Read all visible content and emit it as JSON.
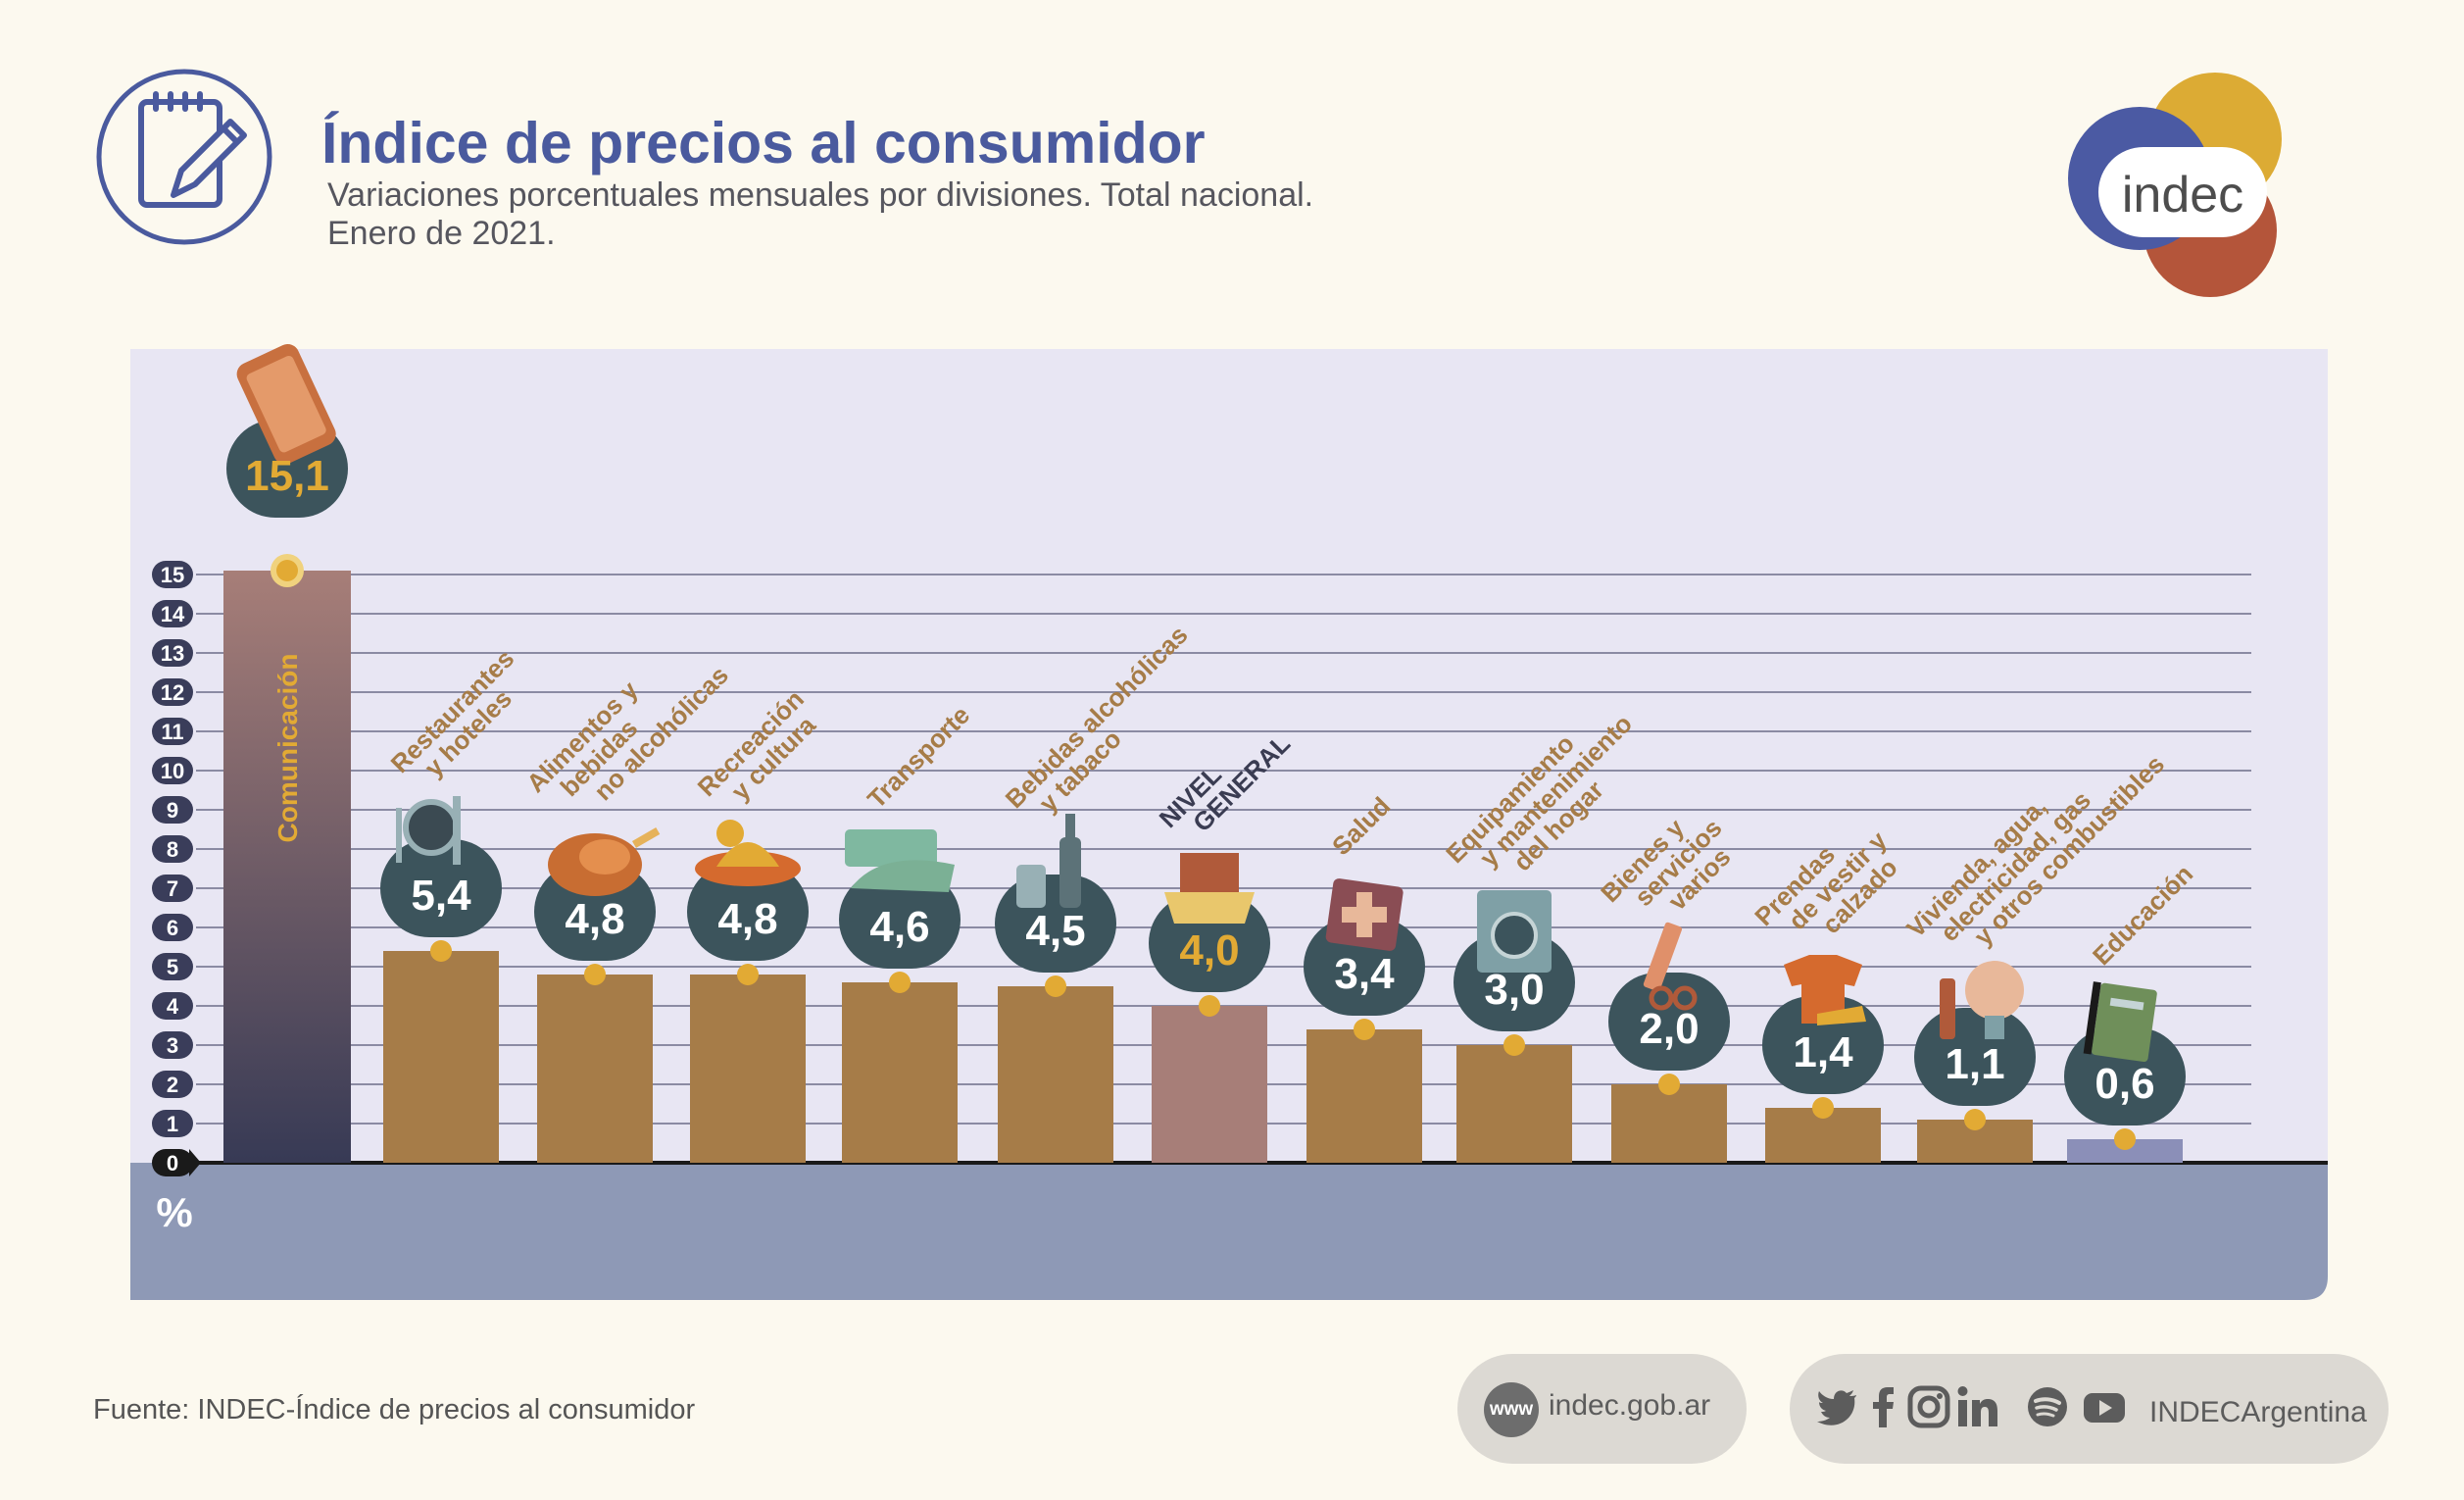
{
  "header": {
    "title": "Índice de precios al consumidor",
    "subtitle_line1": "Variaciones porcentuales mensuales por divisiones. Total nacional.",
    "subtitle_line2": "Enero de 2021."
  },
  "logo": {
    "text": "indec",
    "colors": [
      "#4b5aa3",
      "#dcab34",
      "#b4553a"
    ]
  },
  "chart_data": {
    "type": "bar",
    "unit_label": "%",
    "ylim": [
      0,
      15
    ],
    "yticks": [
      "0",
      "1",
      "2",
      "3",
      "4",
      "5",
      "6",
      "7",
      "8",
      "9",
      "10",
      "11",
      "12",
      "13",
      "14",
      "15"
    ],
    "grid": true,
    "categories": [
      "Comunicación",
      "Restaurantes y hoteles",
      "Alimentos y bebidas no alcohólicas",
      "Recreación y cultura",
      "Transporte",
      "Bebidas alcohólicas y tabaco",
      "NIVEL GENERAL",
      "Salud",
      "Equipamiento y mantenimiento del hogar",
      "Bienes y servicios varios",
      "Prendas de vestir y calzado",
      "Vivienda, agua, electricidad, gas y otros combustibles",
      "Educación"
    ],
    "category_lines": [
      [
        "Comunicación"
      ],
      [
        "Restaurantes",
        "y hoteles"
      ],
      [
        "Alimentos y",
        "bebidas",
        "no alcohólicas"
      ],
      [
        "Recreación",
        "y cultura"
      ],
      [
        "Transporte"
      ],
      [
        "Bebidas alcohólicas",
        "y tabaco"
      ],
      [
        "NIVEL",
        "GENERAL"
      ],
      [
        "Salud"
      ],
      [
        "Equipamiento",
        "y mantenimiento",
        "del hogar"
      ],
      [
        "Bienes y",
        "servicios",
        "varios"
      ],
      [
        "Prendas",
        "de vestir y",
        "calzado"
      ],
      [
        "Vivienda, agua,",
        "electricidad, gas",
        "y otros combustibles"
      ],
      [
        "Educación"
      ]
    ],
    "values": [
      15.1,
      5.4,
      4.8,
      4.8,
      4.6,
      4.5,
      4.0,
      3.4,
      3.0,
      2.0,
      1.4,
      1.1,
      0.6
    ],
    "value_labels": [
      "15,1",
      "5,4",
      "4,8",
      "4,8",
      "4,6",
      "4,5",
      "4,0",
      "3,4",
      "3,0",
      "2,0",
      "1,4",
      "1,1",
      "0,6"
    ],
    "icons": [
      "phone-icon",
      "restaurant-icon",
      "roast-chicken-icon",
      "sun-hat-icon",
      "sube-card-icon",
      "bottles-icon",
      "shopping-basket-icon",
      "first-aid-kit-icon",
      "washing-machine-icon",
      "comb-scissors-icon",
      "shirt-shoe-icon",
      "lightbulb-icon",
      "notebook-icon"
    ],
    "colors": {
      "bar": "#a67c48",
      "highlight_bar_top": "#a77e78",
      "highlight_bar_bottom": "#373a55",
      "general_bar": "#a77e78",
      "education_bar": "#8b8fb8",
      "badge": "#3c545c",
      "badge_text": "#ffffff",
      "badge_highlight_text": "#e2aa34",
      "dot": "#e2aa34",
      "label": "#a67c48",
      "general_label": "#3a3c52",
      "plot_bg": "#e8e6f3",
      "floor": "#8e99b6"
    }
  },
  "footer": {
    "source": "Fuente: INDEC-Índice de precios al consumidor",
    "www_badge": "www",
    "website": "indec.gob.ar",
    "social_handle": "INDECArgentina",
    "social_icons": [
      "twitter-icon",
      "facebook-icon",
      "instagram-icon",
      "linkedin-icon",
      "spotify-icon",
      "youtube-icon"
    ]
  }
}
